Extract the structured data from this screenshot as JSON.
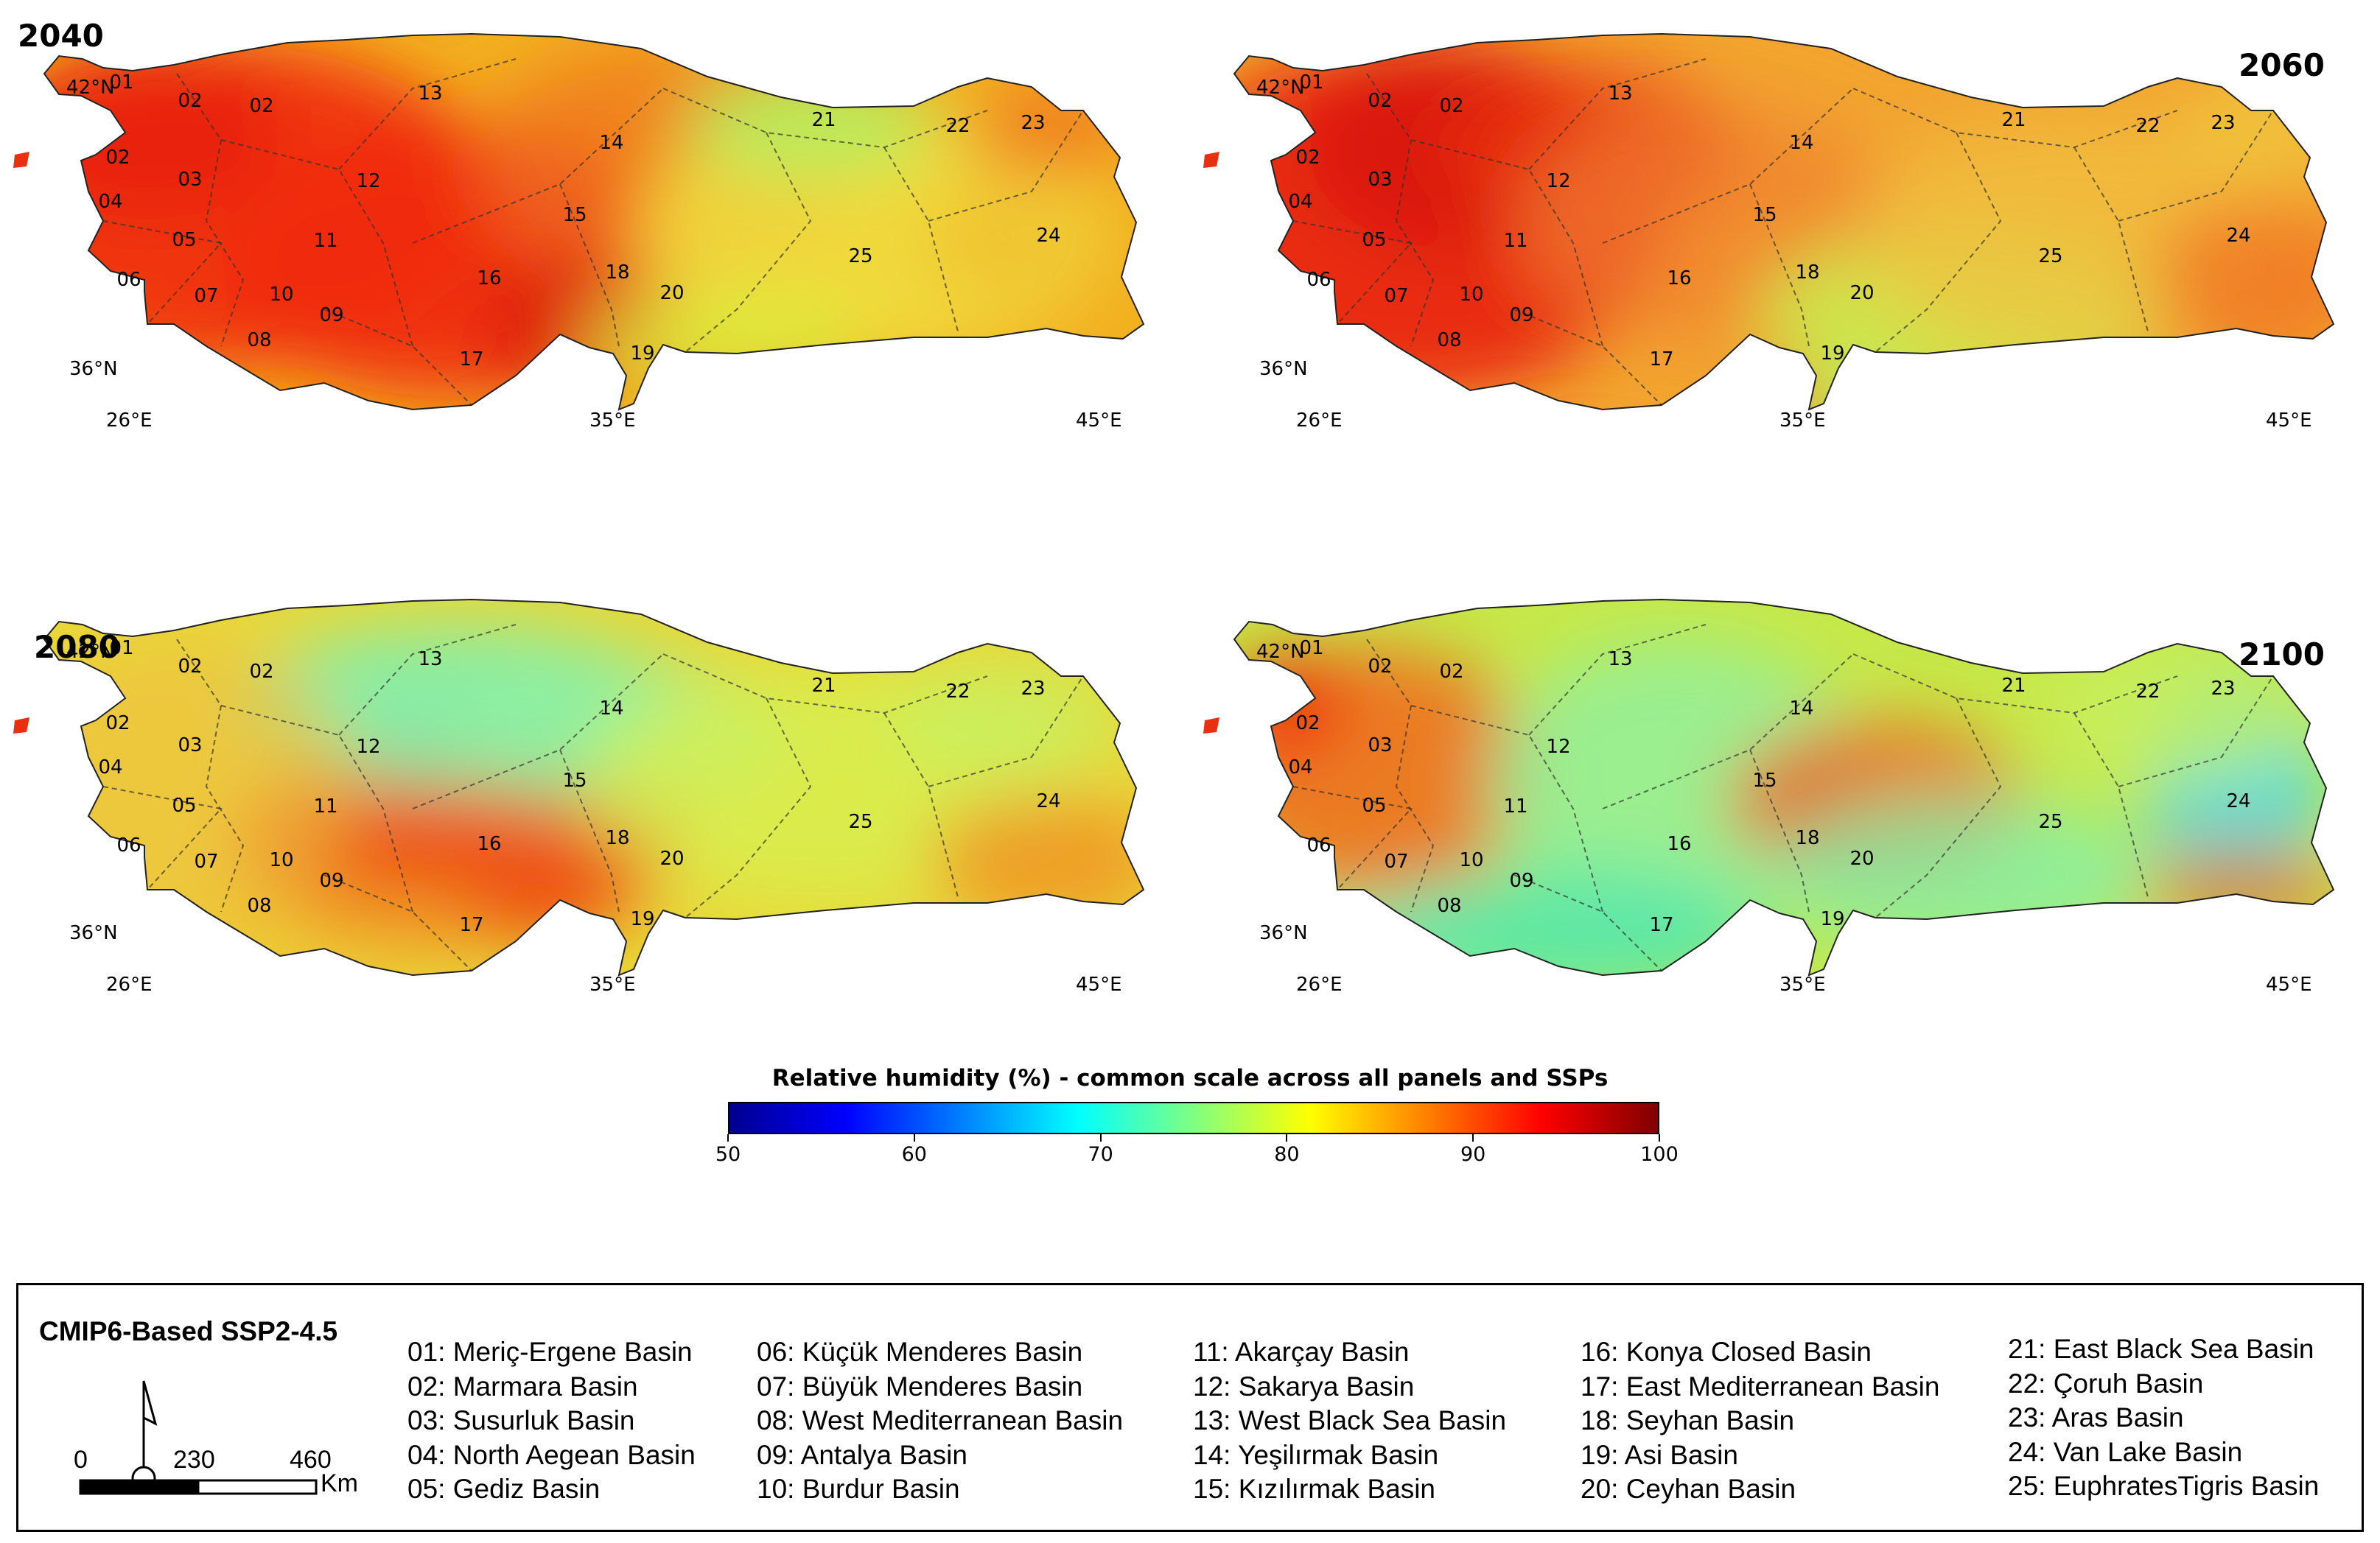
{
  "panels": [
    {
      "year": "2040",
      "lat_top": "42°N",
      "lat_bottom": "36°N",
      "lon": [
        "26°E",
        "35°E",
        "45°E"
      ]
    },
    {
      "year": "2060",
      "lat_top": "42°N",
      "lat_bottom": "36°N",
      "lon": [
        "26°E",
        "35°E",
        "45°E"
      ]
    },
    {
      "year": "2080",
      "lat_top": "42°N",
      "lat_bottom": "36°N",
      "lon": [
        "26°E",
        "35°E",
        "45°E"
      ]
    },
    {
      "year": "2100",
      "lat_top": "42°N",
      "lat_bottom": "36°N",
      "lon": [
        "26°E",
        "35°E",
        "45°E"
      ]
    }
  ],
  "basin_numbers": [
    "01",
    "02",
    "02",
    "02",
    "03",
    "04",
    "05",
    "06",
    "07",
    "08",
    "09",
    "10",
    "11",
    "12",
    "13",
    "14",
    "15",
    "16",
    "17",
    "18",
    "19",
    "20",
    "21",
    "22",
    "23",
    "24",
    "25"
  ],
  "colorbar": {
    "title": "Relative humidity (%) - common scale across all panels and SSPs",
    "ticks": [
      "50",
      "60",
      "70",
      "80",
      "90",
      "100"
    ],
    "colors": [
      "#00008f",
      "#0000ff",
      "#0080ff",
      "#00ffff",
      "#80ff80",
      "#ffff00",
      "#ff8000",
      "#ff0000",
      "#800000"
    ]
  },
  "legend": {
    "title": "CMIP6-Based SSP2-4.5",
    "scale": {
      "labels": [
        "0",
        "230",
        "460"
      ],
      "unit": "Km"
    },
    "columns": [
      [
        "01: Meriç-Ergene Basin",
        "02: Marmara Basin",
        "03: Susurluk Basin",
        "04: North Aegean Basin",
        "05: Gediz Basin"
      ],
      [
        "06: Küçük Menderes Basin",
        "07: Büyük Menderes Basin",
        "08: West Mediterranean Basin",
        "09: Antalya Basin",
        "10: Burdur Basin"
      ],
      [
        "11: Akarçay Basin",
        "12: Sakarya Basin",
        "13: West Black Sea Basin",
        "14: Yeşilırmak Basin",
        "15: Kızılırmak Basin"
      ],
      [
        "16: Konya Closed Basin",
        "17: East Mediterranean Basin",
        "18: Seyhan Basin",
        "19: Asi Basin",
        "20: Ceyhan Basin"
      ],
      [
        "21: East Black Sea Basin",
        "22: Çoruh Basin",
        "23: Aras Basin",
        "24: Van Lake Basin",
        "25: EuphratesTigris Basin"
      ]
    ]
  }
}
